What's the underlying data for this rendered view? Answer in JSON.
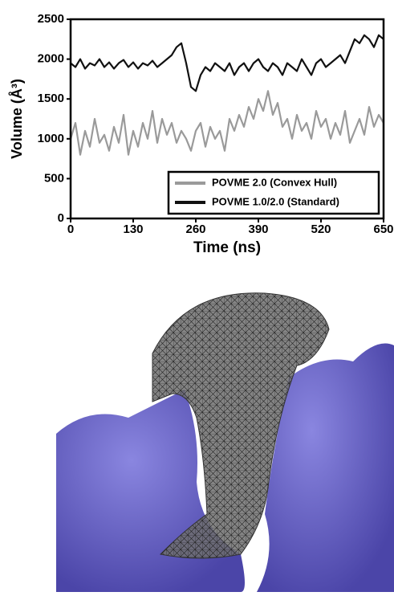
{
  "chart_data": {
    "type": "line",
    "x_label": "Time (ns)",
    "y_label": "Volume (Å³)",
    "x": [
      0,
      10,
      20,
      30,
      40,
      50,
      60,
      70,
      80,
      90,
      100,
      110,
      120,
      130,
      140,
      150,
      160,
      170,
      180,
      190,
      200,
      210,
      220,
      230,
      240,
      250,
      260,
      270,
      280,
      290,
      300,
      310,
      320,
      330,
      340,
      350,
      360,
      370,
      380,
      390,
      400,
      410,
      420,
      430,
      440,
      450,
      460,
      470,
      480,
      490,
      500,
      510,
      520,
      530,
      540,
      550,
      560,
      570,
      580,
      590,
      600,
      610,
      620,
      630,
      640,
      650
    ],
    "series": [
      {
        "name": "POVME 2.0 (Convex Hull)",
        "color": "#9a9a9a",
        "values": [
          1000,
          1200,
          800,
          1100,
          900,
          1250,
          950,
          1050,
          850,
          1150,
          950,
          1300,
          800,
          1100,
          900,
          1200,
          1000,
          1350,
          950,
          1250,
          1050,
          1200,
          950,
          1100,
          1000,
          850,
          1100,
          1200,
          900,
          1150,
          1000,
          1100,
          850,
          1250,
          1100,
          1300,
          1150,
          1400,
          1250,
          1500,
          1350,
          1600,
          1300,
          1450,
          1150,
          1250,
          1000,
          1300,
          1100,
          1200,
          1000,
          1350,
          1150,
          1250,
          1000,
          1200,
          1050,
          1350,
          950,
          1100,
          1250,
          1050,
          1400,
          1150,
          1300,
          1200
        ]
      },
      {
        "name": "POVME 1.0/2.0 (Standard)",
        "color": "#111111",
        "values": [
          1950,
          1900,
          2000,
          1880,
          1950,
          1920,
          2000,
          1900,
          1960,
          1880,
          1950,
          1990,
          1900,
          1960,
          1880,
          1950,
          1920,
          1980,
          1900,
          1950,
          2000,
          2050,
          2150,
          2200,
          1950,
          1650,
          1600,
          1800,
          1900,
          1850,
          1950,
          1900,
          1850,
          1950,
          1800,
          1900,
          1950,
          1850,
          1950,
          2000,
          1900,
          1850,
          1950,
          1900,
          1800,
          1950,
          1900,
          1850,
          2000,
          1900,
          1800,
          1950,
          2000,
          1900,
          1950,
          2000,
          2050,
          1950,
          2100,
          2250,
          2200,
          2300,
          2250,
          2150,
          2300,
          2250
        ]
      }
    ],
    "xlim": [
      0,
      650
    ],
    "xticks": [
      0,
      130,
      260,
      390,
      520,
      650
    ],
    "ylim": [
      0,
      2500
    ],
    "yticks": [
      0,
      500,
      1000,
      1500,
      2000,
      2500
    ],
    "legend": "lower right"
  }
}
